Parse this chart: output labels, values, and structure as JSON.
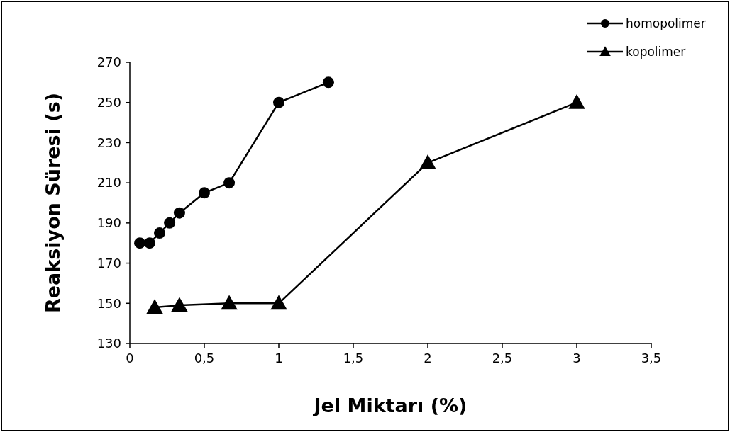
{
  "chart_data": {
    "type": "line",
    "xlabel": "Jel Miktarı (%)",
    "ylabel": "Reaksiyon Süresi (s)",
    "xlim": [
      0,
      3.5
    ],
    "xticks": [
      0,
      {
        "value": 0.5,
        "label": "0,5"
      },
      1,
      {
        "value": 1.5,
        "label": "1,5"
      },
      2,
      {
        "value": 2.5,
        "label": "2,5"
      },
      3,
      {
        "value": 3.5,
        "label": "3,5"
      }
    ],
    "ylim": [
      130,
      270
    ],
    "yticks": [
      130,
      150,
      170,
      190,
      210,
      230,
      250,
      270
    ],
    "grid": false,
    "legend": "top right",
    "line_style": "solid",
    "series": [
      {
        "name": "homopolimer",
        "color": "#000000",
        "marker": "circle",
        "x": [
          0.067,
          0.133,
          0.2,
          0.267,
          0.333,
          0.5,
          0.667,
          1,
          1.333
        ],
        "values": [
          180,
          180,
          185,
          190,
          195,
          205,
          210,
          250,
          260
        ]
      },
      {
        "name": "kopolimer",
        "color": "#000000",
        "marker": "triangle",
        "x": [
          0.167,
          0.333,
          0.667,
          1,
          2,
          3
        ],
        "values": [
          148,
          149,
          150,
          150,
          220,
          250
        ]
      }
    ]
  }
}
